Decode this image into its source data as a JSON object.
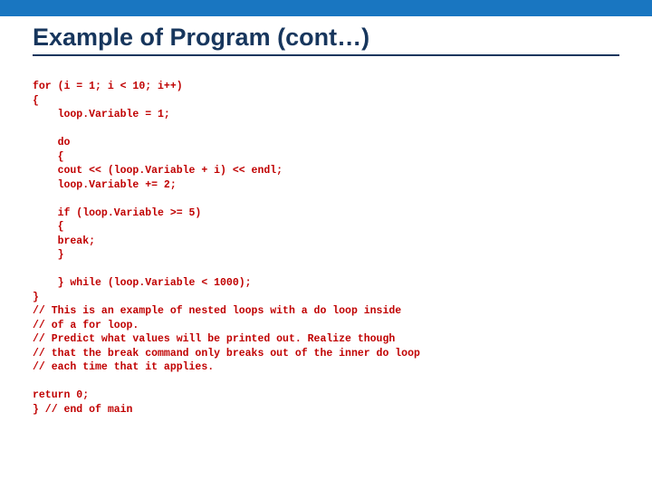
{
  "slide": {
    "title": "Example of Program (cont…)",
    "top_bar_color": "#1976c1",
    "title_color": "#17365d",
    "code_color": "#c00000",
    "code_fontsize": 11.5,
    "code_lines": [
      "for (i = 1; i < 10; i++)",
      "{",
      "    loop.Variable = 1;",
      "",
      "    do",
      "    {",
      "    cout << (loop.Variable + i) << endl;",
      "    loop.Variable += 2;",
      "",
      "    if (loop.Variable >= 5)",
      "    {",
      "    break;",
      "    }",
      "",
      "    } while (loop.Variable < 1000);",
      "}",
      "// This is an example of nested loops with a do loop inside",
      "// of a for loop.",
      "// Predict what values will be printed out. Realize though",
      "// that the break command only breaks out of the inner do loop",
      "// each time that it applies.",
      "",
      "return 0;",
      "} // end of main"
    ]
  }
}
